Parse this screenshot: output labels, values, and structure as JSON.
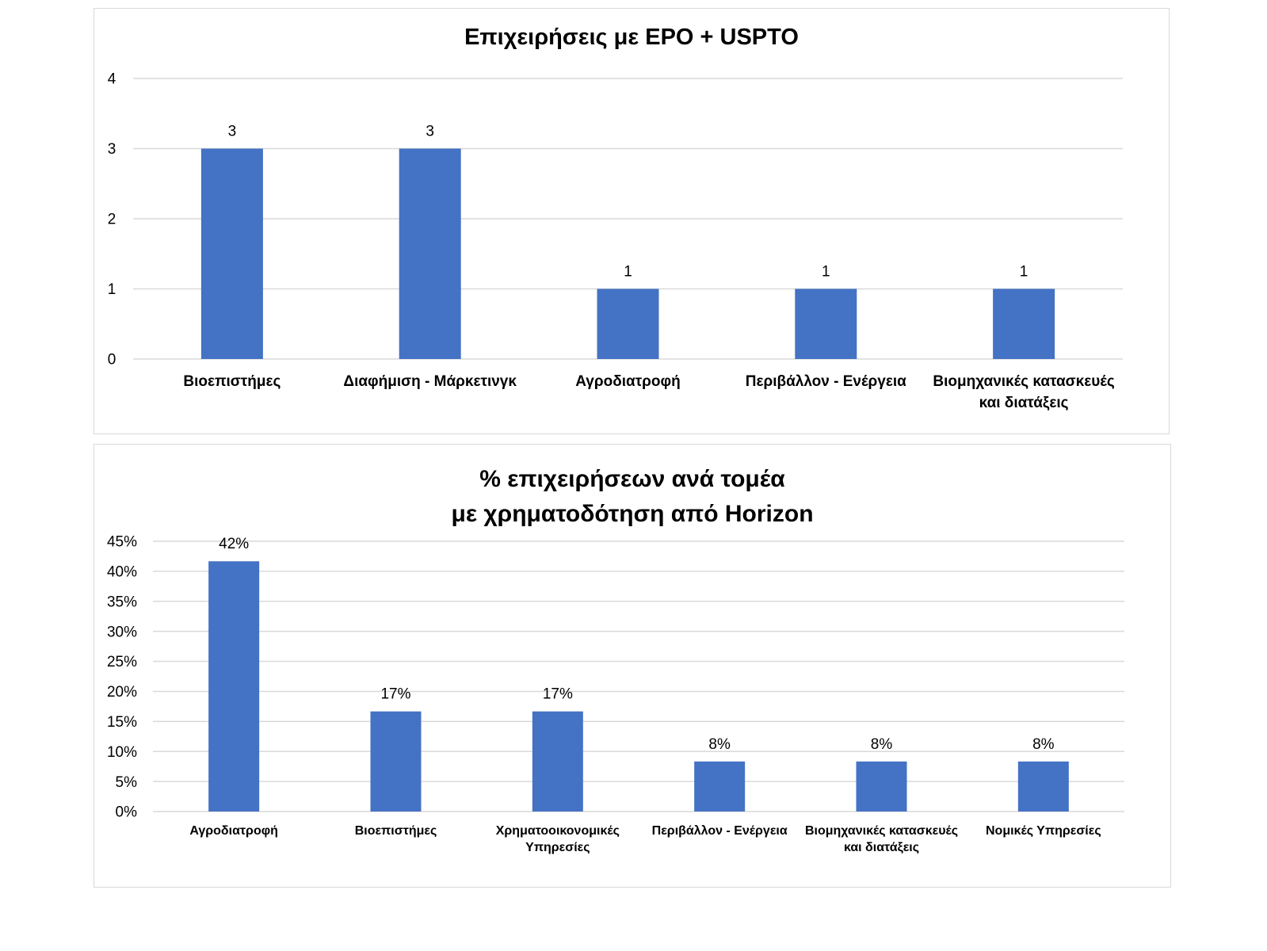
{
  "charts": [
    {
      "title": "Επιχειρήσεις με EPO + USPTO",
      "chart_data": {
        "type": "bar",
        "title": "Επιχειρήσεις με EPO + USPTO",
        "xlabel": "",
        "ylabel": "",
        "categories": [
          "Βιοεπιστήμες",
          "Διαφήμιση - Μάρκετινγκ",
          "Αγροδιατροφή",
          "Περιβάλλον - Ενέργεια",
          "Βιομηχανικές κατασκευές και διατάξεις"
        ],
        "category_lines": [
          [
            "Βιοεπιστήμες"
          ],
          [
            "Διαφήμιση - Μάρκετινγκ"
          ],
          [
            "Αγροδιατροφή"
          ],
          [
            "Περιβάλλον - Ενέργεια"
          ],
          [
            "Βιομηχανικές κατασκευές",
            "και διατάξεις"
          ]
        ],
        "values": [
          3,
          3,
          1,
          1,
          1
        ],
        "data_labels": [
          "3",
          "3",
          "1",
          "1",
          "1"
        ],
        "ylim": [
          0,
          4
        ],
        "yticks": [
          0,
          1,
          2,
          3,
          4
        ],
        "ytick_labels": [
          "0",
          "1",
          "2",
          "3",
          "4"
        ],
        "grid": true,
        "legend": "none",
        "bar_color": "#4472c4"
      }
    },
    {
      "title": "% επιχειρήσεων ανά τομέα\nμε χρηματοδότηση από Horizon",
      "chart_data": {
        "type": "bar",
        "title": "% επιχειρήσεων ανά τομέα με χρηματοδότηση από Horizon",
        "xlabel": "",
        "ylabel": "",
        "categories": [
          "Αγροδιατροφή",
          "Βιοεπιστήμες",
          "Χρηματοοικονομικές Υπηρεσίες",
          "Περιβάλλον - Ενέργεια",
          "Βιομηχανικές κατασκευές και διατάξεις",
          "Νομικές Υπηρεσίες"
        ],
        "category_lines": [
          [
            "Αγροδιατροφή"
          ],
          [
            "Βιοεπιστήμες"
          ],
          [
            "Χρηματοοικονομικές",
            "Υπηρεσίες"
          ],
          [
            "Περιβάλλον - Ενέργεια"
          ],
          [
            "Βιομηχανικές κατασκευές",
            "και διατάξεις"
          ],
          [
            "Νομικές Υπηρεσίες"
          ]
        ],
        "values": [
          41.67,
          16.67,
          16.67,
          8.33,
          8.33,
          8.33
        ],
        "data_labels": [
          "42%",
          "17%",
          "17%",
          "8%",
          "8%",
          "8%"
        ],
        "ylim": [
          0,
          45
        ],
        "yticks": [
          0,
          5,
          10,
          15,
          20,
          25,
          30,
          35,
          40,
          45
        ],
        "ytick_labels": [
          "0%",
          "5%",
          "10%",
          "15%",
          "20%",
          "25%",
          "30%",
          "35%",
          "40%",
          "45%"
        ],
        "grid": true,
        "legend": "none",
        "bar_color": "#4472c4"
      }
    }
  ]
}
